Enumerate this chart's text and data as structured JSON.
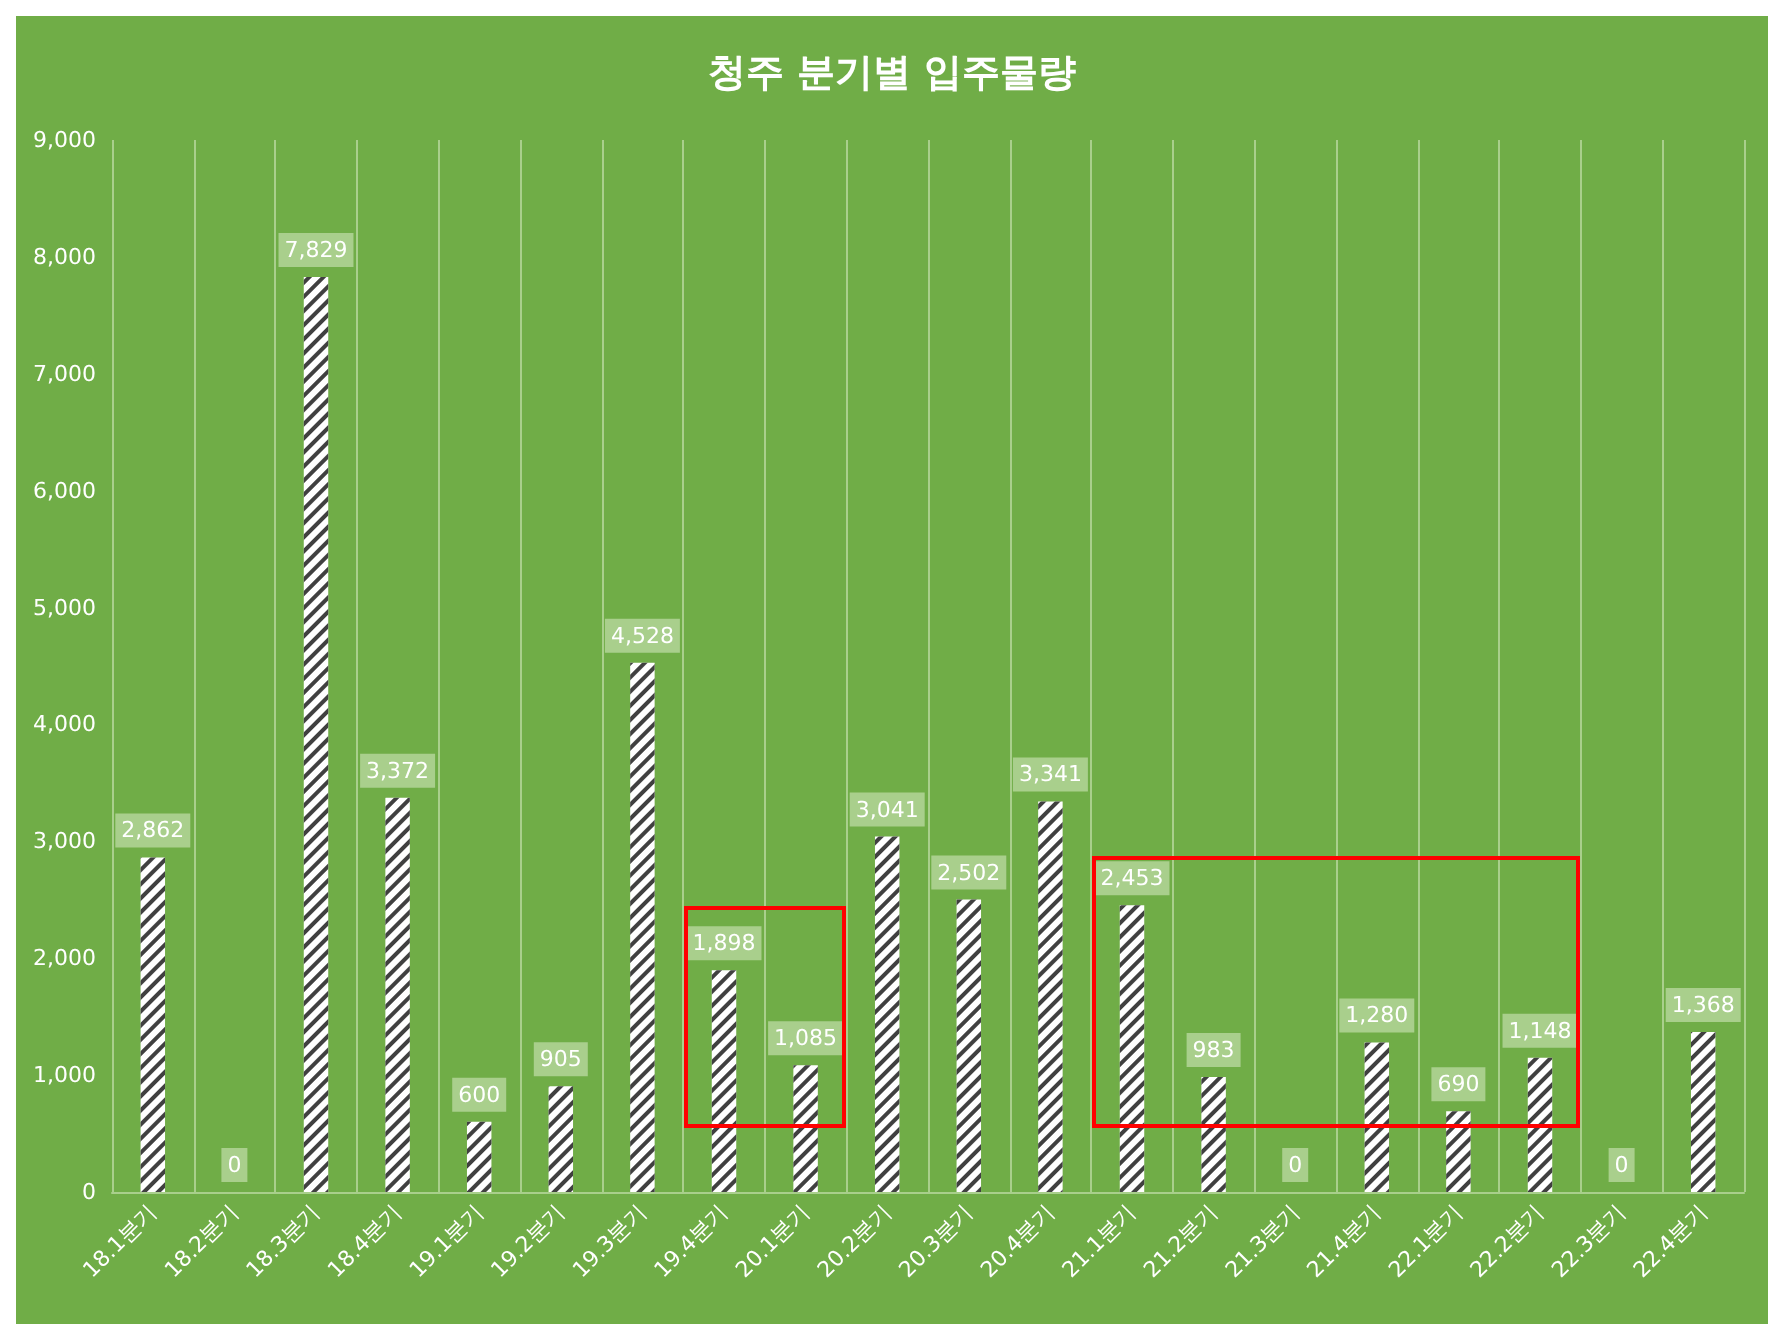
{
  "chart_data": {
    "type": "bar",
    "title": "청주 분기별 입주물량",
    "categories": [
      "18.1분기",
      "18.2분기",
      "18.3분기",
      "18.4분기",
      "19.1분기",
      "19.2분기",
      "19.3분기",
      "19.4분기",
      "20.1분기",
      "20.2분기",
      "20.3분기",
      "20.4분기",
      "21.1분기",
      "21.2분기",
      "21.3분기",
      "21.4분기",
      "22.1분기",
      "22.2분기",
      "22.3분기",
      "22.4분기"
    ],
    "values": [
      2862,
      0,
      7829,
      3372,
      600,
      905,
      4528,
      1898,
      1085,
      3041,
      2502,
      3341,
      2453,
      983,
      0,
      1280,
      690,
      1148,
      0,
      1368
    ],
    "value_labels": [
      "2,862",
      "0",
      "7,829",
      "3,372",
      "600",
      "905",
      "4,528",
      "1,898",
      "1,085",
      "3,041",
      "2,502",
      "3,341",
      "2,453",
      "983",
      "0",
      "1,280",
      "690",
      "1,148",
      "0",
      "1,368"
    ],
    "color": "#ffffff",
    "ylim": [
      0,
      9000
    ],
    "yticks": [
      0,
      {
        "value": 1000,
        "label": "1,000"
      },
      {
        "value": 2000,
        "label": "2,000"
      },
      {
        "value": 3000,
        "label": "3,000"
      },
      {
        "value": 4000,
        "label": "4,000"
      },
      {
        "value": 5000,
        "label": "5,000"
      },
      {
        "value": 6000,
        "label": "6,000"
      },
      {
        "value": 7000,
        "label": "7,000"
      },
      {
        "value": 8000,
        "label": "8,000"
      },
      {
        "value": 9000,
        "label": "9,000"
      }
    ],
    "grid": "x"
  }
}
